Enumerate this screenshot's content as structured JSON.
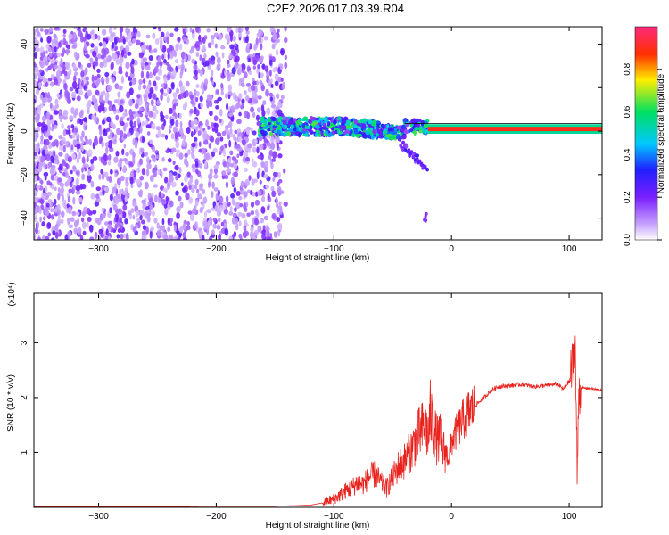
{
  "title": "C2E2.2026.017.03.39.R04",
  "chart_data": [
    {
      "type": "heatmap",
      "panel": "spectrogram",
      "xlabel": "Height of straight line (km)",
      "ylabel": "Frequency (Hz)",
      "xlim": [
        -355,
        128
      ],
      "ylim": [
        -50,
        48
      ],
      "xticks": [
        -300,
        -200,
        -100,
        0,
        100
      ],
      "yticks": [
        -40,
        -20,
        0,
        20,
        40
      ],
      "colorbar": {
        "label": "Normalized spectral amplitude",
        "range": [
          0,
          1
        ],
        "ticks": [
          0.0,
          0.2,
          0.4,
          0.6,
          0.8
        ]
      },
      "regions": [
        {
          "description": "scattered noise speckle",
          "x_range": [
            -355,
            -145
          ],
          "y_range": [
            -50,
            48
          ],
          "amplitude": 0.08
        },
        {
          "description": "noisy signal band",
          "x_range": [
            -165,
            -20
          ],
          "y_range": [
            -5,
            10
          ],
          "amplitude": 0.35
        },
        {
          "description": "strong carrier line",
          "x_range": [
            -20,
            128
          ],
          "y_range": [
            -1,
            2
          ],
          "amplitude": 0.95
        }
      ]
    },
    {
      "type": "line",
      "panel": "snr",
      "xlabel": "Height of straight line (km)",
      "ylabel": "SNR (10 * v/v)",
      "y_multiplier": "(x10⁴)",
      "xlim": [
        -355,
        128
      ],
      "ylim": [
        0,
        3.9
      ],
      "xticks": [
        -300,
        -200,
        -100,
        0,
        100
      ],
      "yticks": [
        1,
        2,
        3
      ],
      "series": [
        {
          "color": "#e8231e",
          "x": [
            -355,
            -300,
            -250,
            -200,
            -150,
            -120,
            -110,
            -100,
            -95,
            -90,
            -85,
            -80,
            -75,
            -70,
            -65,
            -60,
            -55,
            -50,
            -45,
            -40,
            -35,
            -30,
            -25,
            -22,
            -20,
            -18,
            -15,
            -12,
            -10,
            -8,
            -5,
            -2,
            0,
            5,
            10,
            15,
            20,
            25,
            30,
            35,
            40,
            50,
            60,
            70,
            80,
            90,
            95,
            100,
            103,
            105,
            106,
            107,
            108,
            110,
            115,
            120,
            128
          ],
          "y": [
            0.01,
            0.01,
            0.01,
            0.02,
            0.02,
            0.04,
            0.08,
            0.15,
            0.22,
            0.3,
            0.35,
            0.45,
            0.42,
            0.55,
            0.6,
            0.45,
            0.35,
            0.55,
            0.75,
            0.85,
            1.0,
            1.25,
            1.4,
            1.6,
            1.2,
            1.7,
            1.4,
            1.2,
            1.3,
            1.05,
            1.0,
            0.9,
            1.2,
            1.4,
            1.6,
            1.75,
            1.85,
            1.95,
            2.05,
            2.15,
            2.2,
            2.22,
            2.24,
            2.2,
            2.22,
            2.25,
            2.15,
            2.3,
            2.6,
            3.1,
            1.8,
            0.4,
            2.1,
            2.18,
            2.17,
            2.16,
            2.13
          ]
        }
      ]
    }
  ]
}
